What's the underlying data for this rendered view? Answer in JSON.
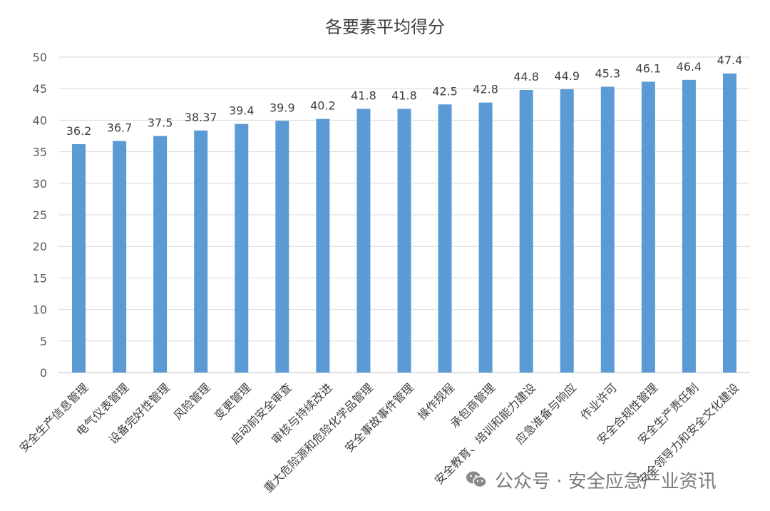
{
  "chart_data": {
    "type": "bar",
    "title": "各要素平均得分",
    "categories": [
      "安全生产信息管理",
      "电气仪表管理",
      "设备完好性管理",
      "风险管理",
      "变更管理",
      "启动前安全审查",
      "审核与持续改进",
      "重大危险源和危险化学品管理",
      "安全事故事件管理",
      "操作规程",
      "承包商管理",
      "安全教育、培训和能力建设",
      "应急准备与响应",
      "作业许可",
      "安全合规性管理",
      "安全生产责任制",
      "安全领导力和安全文化建设"
    ],
    "values": [
      36.2,
      36.7,
      37.5,
      38.37,
      39.4,
      39.9,
      40.2,
      41.8,
      41.8,
      42.5,
      42.8,
      44.8,
      44.9,
      45.3,
      46.1,
      46.4,
      47.4
    ],
    "value_labels": [
      "36.2",
      "36.7",
      "37.5",
      "38.37",
      "39.4",
      "39.9",
      "40.2",
      "41.8",
      "41.8",
      "42.5",
      "42.8",
      "44.8",
      "44.9",
      "45.3",
      "46.1",
      "46.4",
      "47.4"
    ],
    "ylim": [
      0,
      50
    ],
    "yticks": [
      "0",
      "5",
      "10",
      "15",
      "20",
      "25",
      "30",
      "35",
      "40",
      "45",
      "50"
    ],
    "xlabel": "",
    "ylabel": "",
    "grid": true,
    "bar_color": "#5b9bd5",
    "grid_color": "#d9d9d9"
  },
  "watermark": {
    "text": "公众号 · 安全应急产业资讯",
    "icon": "wechat-icon"
  }
}
